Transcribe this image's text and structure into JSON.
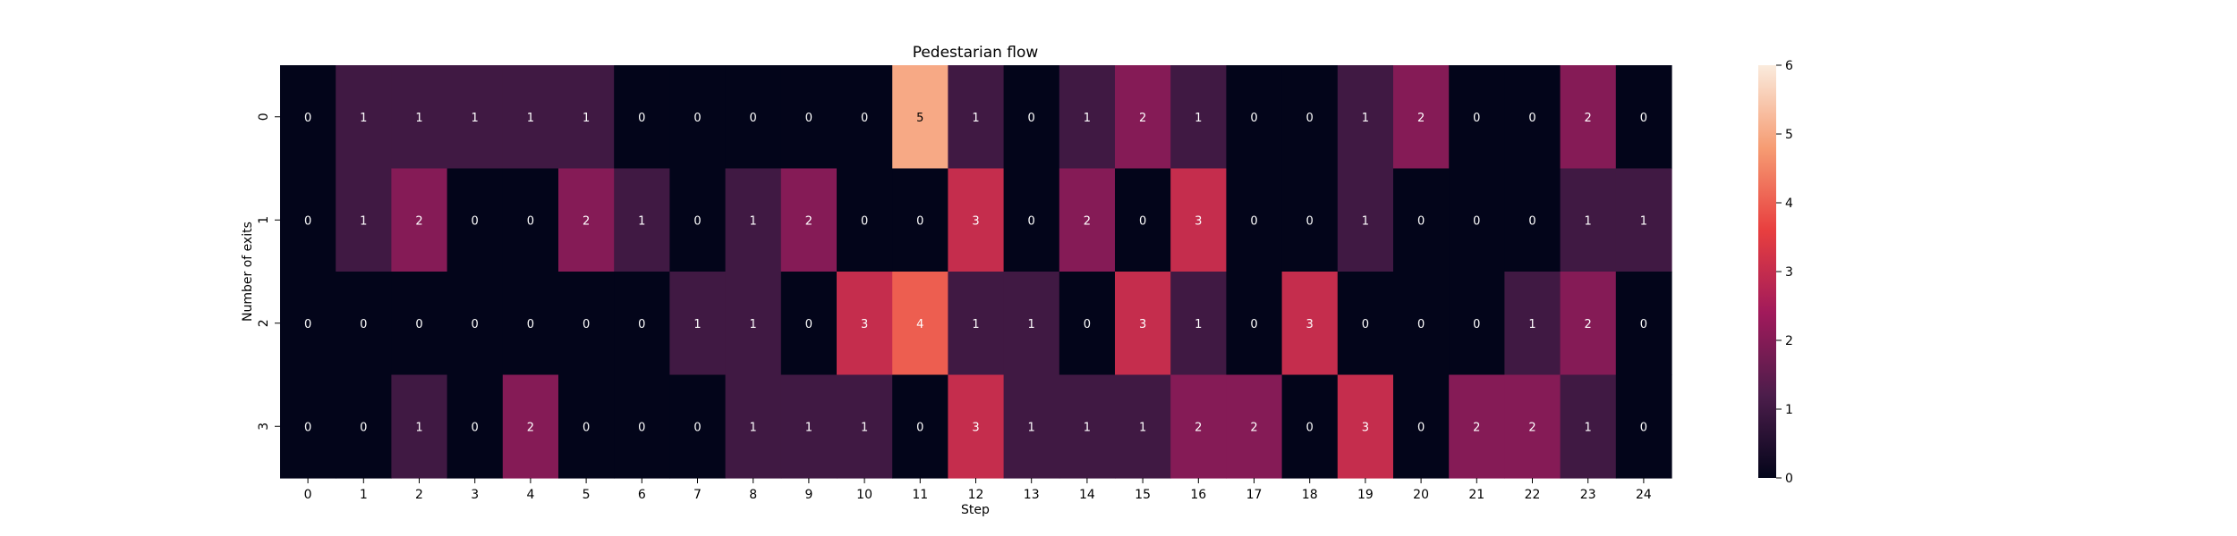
{
  "chart_data": {
    "type": "heatmap",
    "title": "Pedestarian flow",
    "xlabel": "Step",
    "ylabel": "Number of exits",
    "x_tick_labels": [
      "0",
      "1",
      "2",
      "3",
      "4",
      "5",
      "6",
      "7",
      "8",
      "9",
      "10",
      "11",
      "12",
      "13",
      "14",
      "15",
      "16",
      "17",
      "18",
      "19",
      "20",
      "21",
      "22",
      "23",
      "24"
    ],
    "y_tick_labels": [
      "0",
      "1",
      "2",
      "3"
    ],
    "values": [
      [
        0,
        1,
        1,
        1,
        1,
        1,
        0,
        0,
        0,
        0,
        0,
        5,
        1,
        0,
        1,
        2,
        1,
        0,
        0,
        1,
        2,
        0,
        0,
        2,
        0
      ],
      [
        0,
        1,
        2,
        0,
        0,
        2,
        1,
        0,
        1,
        2,
        0,
        0,
        3,
        0,
        2,
        0,
        3,
        0,
        0,
        1,
        0,
        0,
        0,
        1,
        1
      ],
      [
        0,
        0,
        0,
        0,
        0,
        0,
        0,
        1,
        1,
        0,
        3,
        4,
        1,
        1,
        0,
        3,
        1,
        0,
        3,
        0,
        0,
        0,
        1,
        2,
        0
      ],
      [
        0,
        0,
        1,
        0,
        2,
        0,
        0,
        0,
        1,
        1,
        1,
        0,
        3,
        1,
        1,
        1,
        2,
        2,
        0,
        3,
        0,
        2,
        2,
        1,
        0
      ]
    ],
    "colorbar": {
      "vmin": 0,
      "vmax": 6,
      "ticks": [
        "0",
        "1",
        "2",
        "3",
        "4",
        "5",
        "6"
      ]
    },
    "colormap": {
      "name": "rocket",
      "stops": [
        "#03051a",
        "#4c1d4b",
        "#a11a5b",
        "#e83f3f",
        "#f69c73",
        "#faebdd"
      ]
    },
    "annotation_colors": {
      "dark": "#ffffff",
      "light": "#000000"
    },
    "grid": false,
    "legend": "none"
  }
}
